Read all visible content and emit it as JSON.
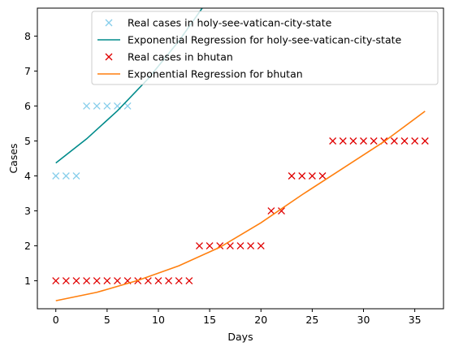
{
  "chart_data": {
    "type": "scatter",
    "title": "",
    "xlabel": "Days",
    "ylabel": "Cases",
    "xlim": [
      -1.8,
      37.8
    ],
    "ylim": [
      0.2,
      8.8
    ],
    "xticks": [
      0,
      5,
      10,
      15,
      20,
      25,
      30,
      35
    ],
    "yticks": [
      1,
      2,
      3,
      4,
      5,
      6,
      7,
      8
    ],
    "grid": false,
    "legend_position": "top-right",
    "series": [
      {
        "name": "Real cases in holy-see-vatican-city-state",
        "kind": "markers",
        "marker": "x",
        "color": "#87ceeb",
        "x": [
          0,
          1,
          2,
          3,
          4,
          5,
          6,
          7
        ],
        "y": [
          4,
          4,
          4,
          6,
          6,
          6,
          6,
          6
        ]
      },
      {
        "name": "Exponential Regression for holy-see-vatican-city-state",
        "kind": "line",
        "color": "#008b8b",
        "x": [
          0,
          3,
          6,
          9,
          12,
          15
        ],
        "y": [
          4.37,
          5.06,
          5.86,
          6.78,
          7.86,
          9.1
        ]
      },
      {
        "name": "Real cases in bhutan",
        "kind": "markers",
        "marker": "x",
        "color": "#e00000",
        "x": [
          0,
          1,
          2,
          3,
          4,
          5,
          6,
          7,
          8,
          9,
          10,
          11,
          12,
          13,
          14,
          15,
          16,
          17,
          18,
          19,
          20,
          21,
          22,
          23,
          24,
          25,
          26,
          27,
          28,
          29,
          30,
          31,
          32,
          33,
          34,
          35,
          36
        ],
        "y": [
          1,
          1,
          1,
          1,
          1,
          1,
          1,
          1,
          1,
          1,
          1,
          1,
          1,
          1,
          2,
          2,
          2,
          2,
          2,
          2,
          2,
          3,
          3,
          4,
          4,
          4,
          4,
          5,
          5,
          5,
          5,
          5,
          5,
          5,
          5,
          5,
          5
        ]
      },
      {
        "name": "Exponential Regression for bhutan",
        "kind": "line",
        "color": "#ff7f0e",
        "x": [
          0,
          4,
          8,
          12,
          16,
          20,
          24,
          28,
          32,
          36
        ],
        "y": [
          0.43,
          0.67,
          1.01,
          1.43,
          1.96,
          2.66,
          3.46,
          4.22,
          4.98,
          5.85
        ]
      }
    ]
  }
}
